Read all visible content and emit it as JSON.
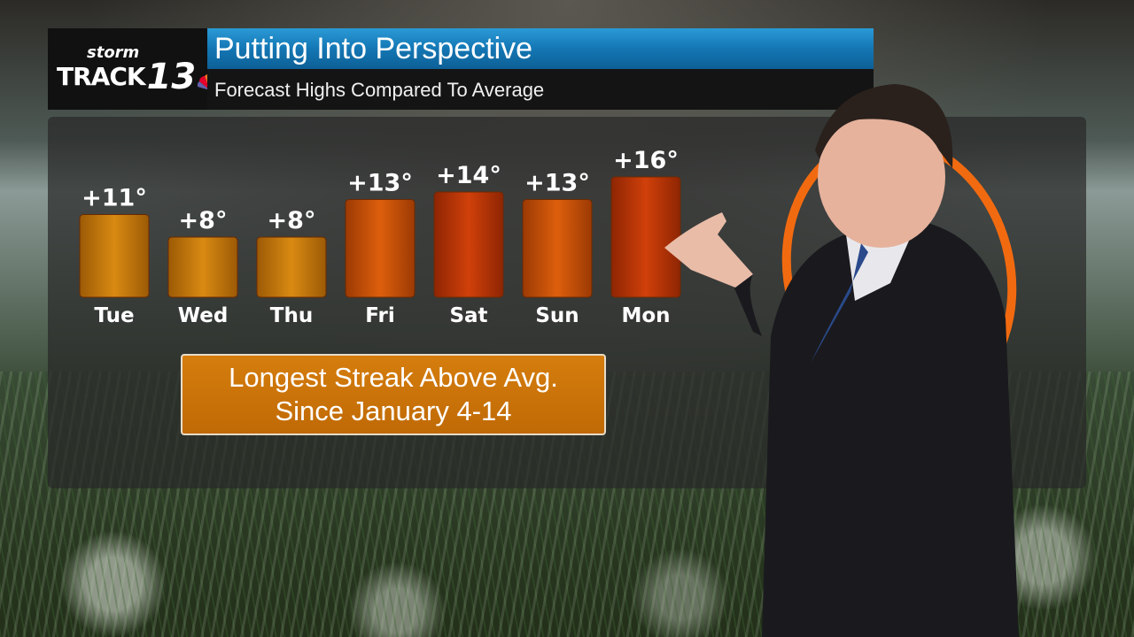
{
  "logo": {
    "top_text": "storm",
    "track_text": "TRACK",
    "number_text": "13"
  },
  "header": {
    "title": "Putting Into Perspective",
    "subtitle": "Forecast Highs Compared To Average"
  },
  "note": {
    "line1": "Longest Streak Above Avg.",
    "line2": "Since January 4-14"
  },
  "colors": {
    "accent_blue": "#1477b4",
    "note_orange": "#c96f08",
    "ring_orange": "#f26a10"
  },
  "chart_data": {
    "type": "bar",
    "categories": [
      "Tue",
      "Wed",
      "Thu",
      "Fri",
      "Sat",
      "Sun",
      "Mon"
    ],
    "values": [
      11,
      8,
      8,
      13,
      14,
      13,
      16
    ],
    "data_labels": [
      "+11°",
      "+8°",
      "+8°",
      "+13°",
      "+14°",
      "+13°",
      "+16°"
    ],
    "title": "",
    "xlabel": "",
    "ylabel": "",
    "grid": false,
    "legend": "none"
  }
}
